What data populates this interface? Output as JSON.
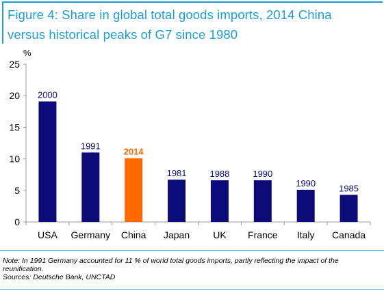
{
  "title": {
    "line1": "Figure 4: Share in global total goods imports, 2014 China",
    "line2": "versus historical peaks of  G7 since 1980"
  },
  "chart_data": {
    "type": "bar",
    "ylabel": "%",
    "ylim": [
      0,
      25
    ],
    "yticks": [
      0,
      5,
      10,
      15,
      20,
      25
    ],
    "categories": [
      "USA",
      "Germany",
      "China",
      "Japan",
      "UK",
      "France",
      "Italy",
      "Canada"
    ],
    "values": [
      19.1,
      11.0,
      10.1,
      6.7,
      6.6,
      6.6,
      5.1,
      4.3
    ],
    "data_labels": [
      "2000",
      "1991",
      "2014",
      "1981",
      "1988",
      "1990",
      "1990",
      "1985"
    ],
    "colors": {
      "default": "#0b0b7a",
      "highlight": "#ff6a00",
      "highlight_label": "#ff6a00",
      "label": "#0b0b7a"
    },
    "highlight_index": 2,
    "grid": false,
    "legend": "none"
  },
  "notes": {
    "note": "Note: In 1991 Germany accounted for 11 % of world total goods imports, partly reflecting the impact of the reunification.",
    "sources": "Sources: Deutsche Bank, UNCTAD"
  },
  "colors": {
    "accent": "#1aa0d8",
    "title": "#1a9fd8"
  }
}
